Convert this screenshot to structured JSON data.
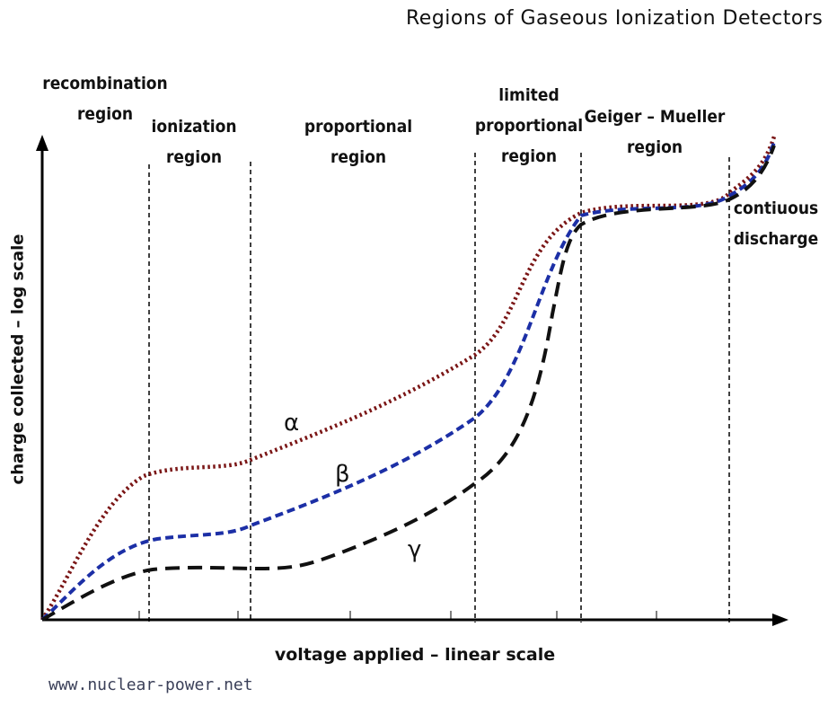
{
  "title": "Regions of Gaseous Ionization Detectors",
  "axes": {
    "y_label": "charge collected – log scale",
    "x_label": "voltage applied – linear scale"
  },
  "regions": [
    {
      "line1": "recombination",
      "line2": "region"
    },
    {
      "line1": "ionization",
      "line2": "region"
    },
    {
      "line1": "proportional",
      "line2": "region"
    },
    {
      "line1": "limited",
      "line2": "proportional",
      "line3": "region"
    },
    {
      "line1": "Geiger – Mueller",
      "line2": "region"
    },
    {
      "line1": "contiuous",
      "line2": "discharge"
    }
  ],
  "curves": [
    {
      "label": "α",
      "color": "#7a1515",
      "style": "dotted"
    },
    {
      "label": "β",
      "color": "#1c2fa6",
      "style": "dashed"
    },
    {
      "label": "γ",
      "color": "#111111",
      "style": "dashed"
    }
  ],
  "credit": "www.nuclear-power.net"
}
